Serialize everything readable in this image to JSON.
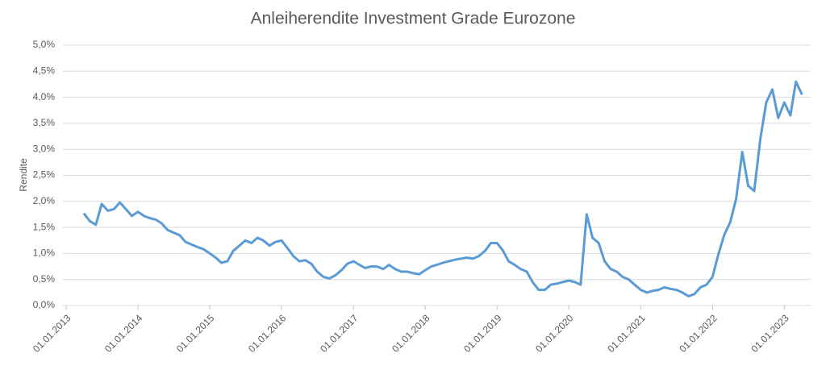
{
  "chart_data": {
    "type": "line",
    "title": "Anleiherendite Investment Grade Eurozone",
    "y_label": "Rendite",
    "color": "#5b9bd5",
    "grid": true,
    "x": [
      "2013-04-01",
      "2013-05-01",
      "2013-06-01",
      "2013-07-01",
      "2013-08-01",
      "2013-09-01",
      "2013-10-01",
      "2013-11-01",
      "2013-12-01",
      "2014-01-01",
      "2014-02-01",
      "2014-03-01",
      "2014-04-01",
      "2014-05-01",
      "2014-06-01",
      "2014-07-01",
      "2014-08-01",
      "2014-09-01",
      "2014-10-01",
      "2014-11-01",
      "2014-12-01",
      "2015-01-01",
      "2015-02-01",
      "2015-03-01",
      "2015-04-01",
      "2015-05-01",
      "2015-06-01",
      "2015-07-01",
      "2015-08-01",
      "2015-09-01",
      "2015-10-01",
      "2015-11-01",
      "2015-12-01",
      "2016-01-01",
      "2016-02-01",
      "2016-03-01",
      "2016-04-01",
      "2016-05-01",
      "2016-06-01",
      "2016-07-01",
      "2016-08-01",
      "2016-09-01",
      "2016-10-01",
      "2016-11-01",
      "2016-12-01",
      "2017-01-01",
      "2017-02-01",
      "2017-03-01",
      "2017-04-01",
      "2017-05-01",
      "2017-06-01",
      "2017-07-01",
      "2017-08-01",
      "2017-09-01",
      "2017-10-01",
      "2017-11-01",
      "2017-12-01",
      "2018-01-01",
      "2018-02-01",
      "2018-03-01",
      "2018-04-01",
      "2018-05-01",
      "2018-06-01",
      "2018-07-01",
      "2018-08-01",
      "2018-09-01",
      "2018-10-01",
      "2018-11-01",
      "2018-12-01",
      "2019-01-01",
      "2019-02-01",
      "2019-03-01",
      "2019-04-01",
      "2019-05-01",
      "2019-06-01",
      "2019-07-01",
      "2019-08-01",
      "2019-09-01",
      "2019-10-01",
      "2019-11-01",
      "2019-12-01",
      "2020-01-01",
      "2020-02-01",
      "2020-03-01",
      "2020-04-01",
      "2020-05-01",
      "2020-06-01",
      "2020-07-01",
      "2020-08-01",
      "2020-09-01",
      "2020-10-01",
      "2020-11-01",
      "2020-12-01",
      "2021-01-01",
      "2021-02-01",
      "2021-03-01",
      "2021-04-01",
      "2021-05-01",
      "2021-06-01",
      "2021-07-01",
      "2021-08-01",
      "2021-09-01",
      "2021-10-01",
      "2021-11-01",
      "2021-12-01",
      "2022-01-01",
      "2022-02-01",
      "2022-03-01",
      "2022-04-01",
      "2022-05-01",
      "2022-06-01",
      "2022-07-01",
      "2022-08-01",
      "2022-09-01",
      "2022-10-01",
      "2022-11-01",
      "2022-12-01",
      "2023-01-01",
      "2023-02-01",
      "2023-03-01",
      "2023-04-01"
    ],
    "values": [
      1.77,
      1.62,
      1.55,
      1.95,
      1.82,
      1.85,
      1.98,
      1.85,
      1.72,
      1.8,
      1.72,
      1.68,
      1.65,
      1.58,
      1.45,
      1.4,
      1.35,
      1.22,
      1.17,
      1.12,
      1.08,
      1.0,
      0.92,
      0.82,
      0.85,
      1.05,
      1.15,
      1.25,
      1.2,
      1.3,
      1.25,
      1.15,
      1.22,
      1.25,
      1.1,
      0.95,
      0.85,
      0.87,
      0.8,
      0.65,
      0.55,
      0.52,
      0.58,
      0.68,
      0.8,
      0.85,
      0.78,
      0.72,
      0.75,
      0.75,
      0.7,
      0.78,
      0.7,
      0.65,
      0.65,
      0.62,
      0.6,
      0.68,
      0.75,
      0.78,
      0.82,
      0.85,
      0.88,
      0.9,
      0.92,
      0.9,
      0.95,
      1.05,
      1.2,
      1.2,
      1.05,
      0.85,
      0.78,
      0.7,
      0.65,
      0.45,
      0.3,
      0.3,
      0.4,
      0.42,
      0.45,
      0.48,
      0.45,
      0.4,
      1.75,
      1.3,
      1.2,
      0.85,
      0.7,
      0.65,
      0.55,
      0.5,
      0.4,
      0.3,
      0.25,
      0.28,
      0.3,
      0.35,
      0.32,
      0.3,
      0.25,
      0.18,
      0.22,
      0.35,
      0.4,
      0.55,
      1.0,
      1.35,
      1.6,
      2.05,
      2.95,
      2.3,
      2.2,
      3.2,
      3.9,
      4.15,
      3.6,
      3.9,
      3.65,
      4.3,
      4.05
    ],
    "xlim": [
      "2013-01-01",
      "2023-05-15"
    ],
    "xticks": [
      {
        "value": "2013-01-01",
        "label": "01.01.2013"
      },
      {
        "value": "2014-01-01",
        "label": "01.01.2014"
      },
      {
        "value": "2015-01-01",
        "label": "01.01.2015"
      },
      {
        "value": "2016-01-01",
        "label": "01.01.2016"
      },
      {
        "value": "2017-01-01",
        "label": "01.01.2017"
      },
      {
        "value": "2018-01-01",
        "label": "01.01.2018"
      },
      {
        "value": "2019-01-01",
        "label": "01.01.2019"
      },
      {
        "value": "2020-01-01",
        "label": "01.01.2020"
      },
      {
        "value": "2021-01-01",
        "label": "01.01.2021"
      },
      {
        "value": "2022-01-01",
        "label": "01.01.2022"
      },
      {
        "value": "2023-01-01",
        "label": "01.01.2023"
      }
    ],
    "ylim": [
      0,
      5
    ],
    "yticks": [
      {
        "value": 0,
        "label": "0,0%"
      },
      {
        "value": 0.5,
        "label": "0,5%"
      },
      {
        "value": 1,
        "label": "1,0%"
      },
      {
        "value": 1.5,
        "label": "1,5%"
      },
      {
        "value": 2,
        "label": "2,0%"
      },
      {
        "value": 2.5,
        "label": "2,5%"
      },
      {
        "value": 3,
        "label": "3,0%"
      },
      {
        "value": 3.5,
        "label": "3,5%"
      },
      {
        "value": 4,
        "label": "4,0%"
      },
      {
        "value": 4.5,
        "label": "4,5%"
      },
      {
        "value": 5,
        "label": "5,0%"
      }
    ]
  }
}
